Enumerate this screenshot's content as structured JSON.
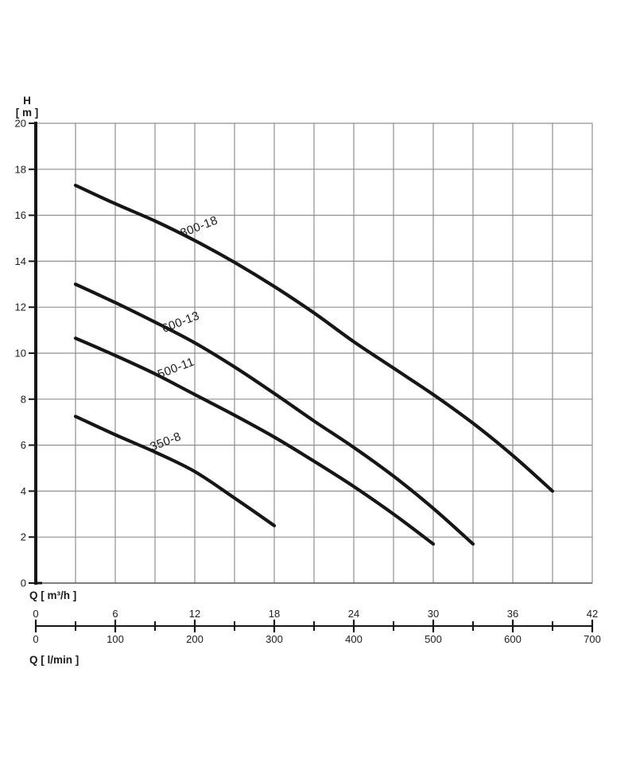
{
  "chart_data": {
    "type": "line",
    "title": "",
    "y_axis": {
      "title_symbol": "H",
      "title_unit": "[ m ]",
      "min": 0,
      "max": 20,
      "tick_step": 2,
      "tick_labels": [
        "20",
        "18",
        "16",
        "14",
        "12",
        "10",
        "8",
        "6",
        "4",
        "2",
        "0"
      ]
    },
    "x_scale_m3h": {
      "label": "Q [ m³/h ]",
      "min": 0,
      "max": 42,
      "ticks": [
        0,
        6,
        12,
        18,
        24,
        30,
        36,
        42
      ]
    },
    "x_scale_lmin": {
      "label": "Q [ l/min ]",
      "min": 0,
      "max": 700,
      "ticks": [
        0,
        100,
        200,
        300,
        400,
        500,
        600,
        700
      ],
      "minor_tick_step": 50
    },
    "grid": {
      "x_step_lmin": 50,
      "y_step_m": 2,
      "on": true
    },
    "legend_position": "labels-on-curves",
    "series": [
      {
        "name": "800-18",
        "label_angle_deg": -21,
        "label_at": {
          "q_lmin": 207,
          "h_m": 15.35
        },
        "points_q_lmin_h_m": [
          [
            50,
            17.3
          ],
          [
            100,
            16.5
          ],
          [
            150,
            15.75
          ],
          [
            200,
            14.9
          ],
          [
            250,
            13.95
          ],
          [
            300,
            12.9
          ],
          [
            350,
            11.75
          ],
          [
            400,
            10.5
          ],
          [
            450,
            9.35
          ],
          [
            500,
            8.2
          ],
          [
            550,
            6.95
          ],
          [
            600,
            5.55
          ],
          [
            650,
            4.0
          ]
        ]
      },
      {
        "name": "600-13",
        "label_angle_deg": -21,
        "label_at": {
          "q_lmin": 184,
          "h_m": 11.2
        },
        "points_q_lmin_h_m": [
          [
            50,
            13.0
          ],
          [
            100,
            12.2
          ],
          [
            150,
            11.35
          ],
          [
            200,
            10.45
          ],
          [
            250,
            9.4
          ],
          [
            300,
            8.25
          ],
          [
            350,
            7.05
          ],
          [
            400,
            5.9
          ],
          [
            450,
            4.65
          ],
          [
            500,
            3.25
          ],
          [
            550,
            1.7
          ]
        ]
      },
      {
        "name": "500-11",
        "label_angle_deg": -21,
        "label_at": {
          "q_lmin": 178,
          "h_m": 9.2
        },
        "points_q_lmin_h_m": [
          [
            50,
            10.65
          ],
          [
            100,
            9.9
          ],
          [
            150,
            9.1
          ],
          [
            200,
            8.2
          ],
          [
            250,
            7.3
          ],
          [
            300,
            6.35
          ],
          [
            350,
            5.3
          ],
          [
            400,
            4.2
          ],
          [
            450,
            3.0
          ],
          [
            500,
            1.7
          ]
        ]
      },
      {
        "name": "350-8",
        "label_angle_deg": -21,
        "label_at": {
          "q_lmin": 165,
          "h_m": 6.0
        },
        "points_q_lmin_h_m": [
          [
            50,
            7.25
          ],
          [
            100,
            6.45
          ],
          [
            150,
            5.7
          ],
          [
            200,
            4.85
          ],
          [
            250,
            3.7
          ],
          [
            300,
            2.5
          ]
        ]
      }
    ],
    "colors": {
      "curve": "#161616",
      "grid": "#8f8f8f",
      "grid_bottom": "#555555",
      "axis": "#161616",
      "text": "#1c1c1c",
      "curve_label": "#3d3d3d",
      "background": "#ffffff"
    }
  }
}
